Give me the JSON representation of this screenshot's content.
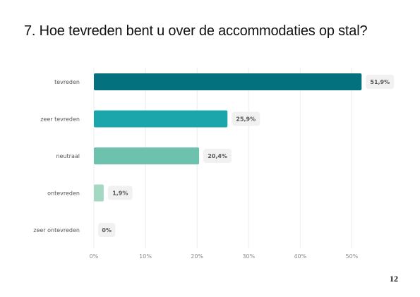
{
  "title": "7. Hoe tevreden bent u over de accommodaties op stal?",
  "page_number": "12",
  "chart_data": {
    "type": "bar",
    "orientation": "horizontal",
    "title": "7. Hoe tevreden bent u over de accommodaties op stal?",
    "categories": [
      "tevreden",
      "zeer tevreden",
      "neutraal",
      "ontevreden",
      "zeer ontevreden"
    ],
    "values": [
      51.9,
      25.9,
      20.4,
      1.9,
      0
    ],
    "data_labels": [
      "51,9%",
      "25,9%",
      "20,4%",
      "1,9%",
      "0%"
    ],
    "bar_colors": [
      "#04717f",
      "#1aa6ab",
      "#6dc2ad",
      "#a4d8c2",
      "#cfe8dc"
    ],
    "xlim": [
      0,
      52
    ],
    "xticks": [
      0,
      10,
      20,
      30,
      40,
      50
    ],
    "xtick_labels": [
      "0%",
      "10%",
      "20%",
      "30%",
      "40%",
      "50%"
    ],
    "grid": true,
    "legend": "none"
  }
}
